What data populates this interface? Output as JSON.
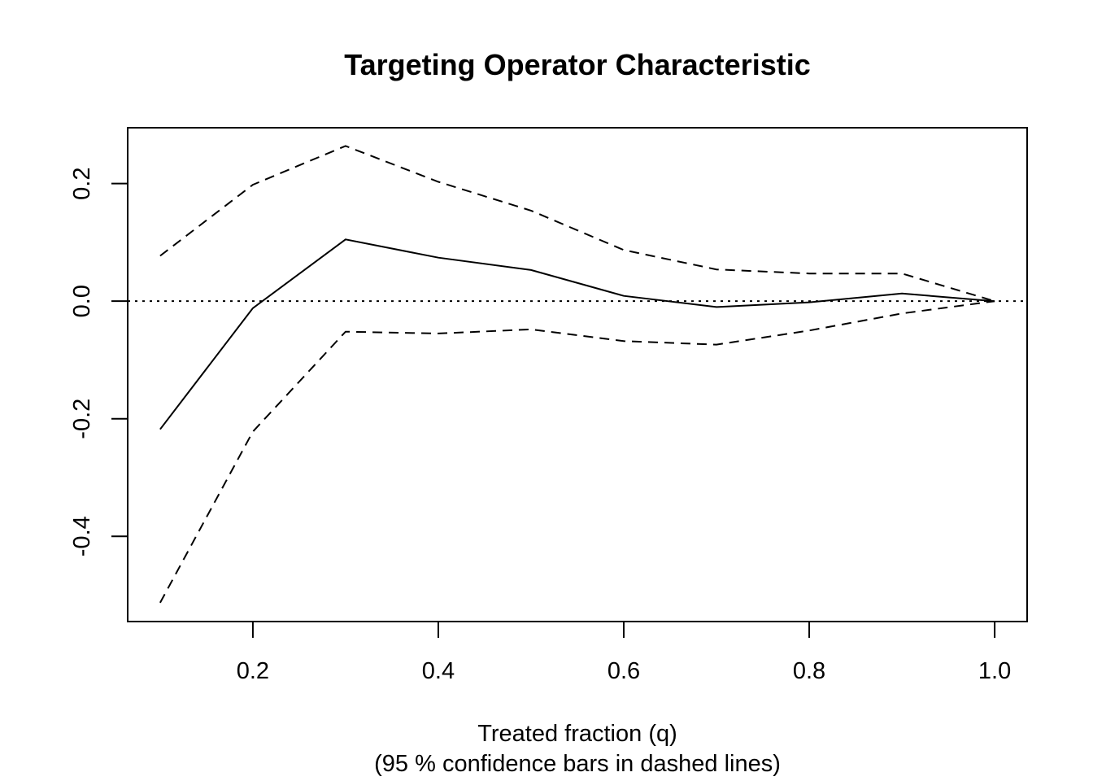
{
  "chart_data": {
    "type": "line",
    "title": "Targeting Operator Characteristic",
    "xlabel": "Treated fraction (q)",
    "xlabel_sub": "(95 % confidence bars in dashed lines)",
    "ylabel": "",
    "xlim": [
      0.065,
      1.035
    ],
    "ylim": [
      -0.545,
      0.295
    ],
    "x_ticks": [
      0.2,
      0.4,
      0.6,
      0.8,
      1.0
    ],
    "x_tick_labels": [
      "0.2",
      "0.4",
      "0.6",
      "0.8",
      "1.0"
    ],
    "y_ticks": [
      -0.4,
      -0.2,
      0.0,
      0.2
    ],
    "y_tick_labels": [
      "-0.4",
      "-0.2",
      "0.0",
      "0.2"
    ],
    "x": [
      0.1,
      0.2,
      0.3,
      0.4,
      0.5,
      0.6,
      0.7,
      0.8,
      0.9,
      1.0
    ],
    "series": [
      {
        "style": "solid",
        "values": [
          -0.218,
          -0.012,
          0.105,
          0.074,
          0.053,
          0.009,
          -0.01,
          -0.002,
          0.013,
          0.0
        ]
      },
      {
        "style": "dashed",
        "values": [
          0.077,
          0.198,
          0.264,
          0.203,
          0.154,
          0.087,
          0.054,
          0.047,
          0.047,
          0.0
        ]
      },
      {
        "style": "dashed",
        "values": [
          -0.513,
          -0.222,
          -0.052,
          -0.055,
          -0.048,
          -0.068,
          -0.074,
          -0.05,
          -0.021,
          0.0
        ]
      }
    ],
    "reference_line": {
      "y": 0.0,
      "style": "dotted"
    },
    "grid": false,
    "legend": "none"
  }
}
